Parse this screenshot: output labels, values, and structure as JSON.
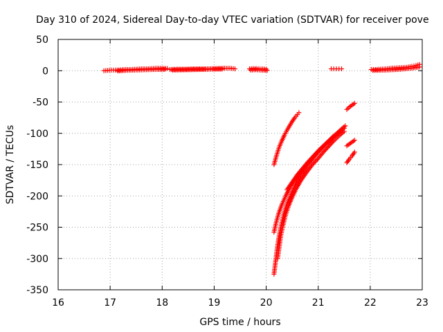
{
  "chart_data": {
    "type": "scatter",
    "title": "Day 310 of 2024, Sidereal Day-to-day VTEC variation (SDTVAR) for receiver pove",
    "xlabel": "GPS time / hours",
    "ylabel": "SDTVAR / TECUs",
    "xlim": [
      16,
      23
    ],
    "ylim": [
      -350,
      50
    ],
    "xticks": [
      16,
      17,
      18,
      19,
      20,
      21,
      22,
      23
    ],
    "yticks": [
      50,
      0,
      -50,
      -100,
      -150,
      -200,
      -250,
      -300,
      -350
    ],
    "grid": true,
    "marker": "plus",
    "color": "#ff0000",
    "series": [
      {
        "points": [
          [
            16.88,
            0
          ],
          [
            16.95,
            0.5
          ],
          [
            17.02,
            1
          ],
          [
            17.1,
            1
          ],
          [
            17.2,
            1.5
          ],
          [
            17.3,
            2
          ],
          [
            17.4,
            2
          ],
          [
            17.5,
            2.5
          ],
          [
            17.6,
            3
          ],
          [
            17.7,
            3
          ],
          [
            17.8,
            3.5
          ],
          [
            17.9,
            4
          ],
          [
            18.0,
            4
          ],
          [
            18.1,
            3.5
          ]
        ]
      },
      {
        "points": [
          [
            17.15,
            -0.5
          ],
          [
            17.3,
            0.5
          ],
          [
            17.5,
            1
          ],
          [
            17.7,
            1.5
          ],
          [
            17.9,
            2
          ],
          [
            18.05,
            2
          ]
        ]
      },
      {
        "points": [
          [
            18.15,
            2
          ],
          [
            18.3,
            2.5
          ],
          [
            18.45,
            2.5
          ],
          [
            18.6,
            3
          ],
          [
            18.75,
            3
          ],
          [
            18.9,
            3
          ],
          [
            19.05,
            3.5
          ],
          [
            19.2,
            4
          ],
          [
            19.3,
            4
          ],
          [
            19.4,
            3
          ]
        ]
      },
      {
        "points": [
          [
            18.2,
            1
          ],
          [
            18.5,
            1.5
          ],
          [
            18.8,
            2
          ],
          [
            19.0,
            2.5
          ],
          [
            19.15,
            2.5
          ]
        ]
      },
      {
        "points": [
          [
            19.68,
            3
          ],
          [
            19.75,
            3.5
          ],
          [
            19.82,
            3.5
          ],
          [
            19.9,
            3
          ],
          [
            20.0,
            2.5
          ]
        ]
      },
      {
        "points": [
          [
            19.7,
            1
          ],
          [
            19.8,
            1.5
          ],
          [
            19.9,
            1
          ],
          [
            20.02,
            0.5
          ]
        ]
      },
      {
        "points": [
          [
            21.25,
            3
          ],
          [
            21.3,
            3
          ],
          [
            21.35,
            3
          ],
          [
            21.4,
            3
          ],
          [
            21.45,
            3
          ]
        ]
      },
      {
        "points": [
          [
            22.02,
            2
          ],
          [
            22.1,
            2
          ],
          [
            22.2,
            2.5
          ],
          [
            22.3,
            3
          ],
          [
            22.4,
            4
          ],
          [
            22.5,
            4.5
          ],
          [
            22.6,
            5
          ],
          [
            22.7,
            5.5
          ],
          [
            22.8,
            7
          ],
          [
            22.88,
            8.5
          ],
          [
            22.95,
            10
          ]
        ]
      },
      {
        "points": [
          [
            22.05,
            0.5
          ],
          [
            22.3,
            1
          ],
          [
            22.55,
            2
          ],
          [
            22.8,
            4
          ],
          [
            22.95,
            6
          ]
        ]
      },
      {
        "points": [
          [
            20.15,
            -150
          ],
          [
            20.2,
            -135
          ],
          [
            20.25,
            -122
          ],
          [
            20.3,
            -112
          ],
          [
            20.35,
            -103
          ],
          [
            20.4,
            -95
          ],
          [
            20.45,
            -88
          ],
          [
            20.5,
            -81
          ],
          [
            20.55,
            -75
          ],
          [
            20.6,
            -70
          ],
          [
            20.63,
            -67
          ]
        ]
      },
      {
        "points": [
          [
            20.15,
            -325
          ],
          [
            20.18,
            -305
          ],
          [
            20.21,
            -285
          ],
          [
            20.24,
            -268
          ],
          [
            20.28,
            -250
          ],
          [
            20.33,
            -232
          ],
          [
            20.4,
            -213
          ],
          [
            20.5,
            -193
          ],
          [
            20.6,
            -176
          ],
          [
            20.7,
            -162
          ],
          [
            20.8,
            -150
          ],
          [
            20.9,
            -140
          ],
          [
            21.0,
            -130
          ],
          [
            21.1,
            -121
          ],
          [
            21.2,
            -113
          ],
          [
            21.3,
            -106
          ],
          [
            21.4,
            -99
          ],
          [
            21.5,
            -92
          ]
        ]
      },
      {
        "points": [
          [
            20.15,
            -258
          ],
          [
            20.19,
            -243
          ],
          [
            20.24,
            -228
          ],
          [
            20.3,
            -214
          ],
          [
            20.38,
            -199
          ],
          [
            20.46,
            -186
          ],
          [
            20.55,
            -174
          ],
          [
            20.65,
            -162
          ],
          [
            20.75,
            -152
          ],
          [
            20.85,
            -143
          ],
          [
            20.95,
            -134
          ],
          [
            21.05,
            -125
          ],
          [
            21.15,
            -117
          ],
          [
            21.25,
            -109
          ],
          [
            21.35,
            -101
          ],
          [
            21.45,
            -93
          ],
          [
            21.52,
            -88
          ]
        ]
      },
      {
        "points": [
          [
            20.22,
            -300
          ],
          [
            20.25,
            -282
          ],
          [
            20.28,
            -264
          ],
          [
            20.32,
            -248
          ],
          [
            20.37,
            -231
          ],
          [
            20.43,
            -216
          ],
          [
            20.5,
            -202
          ],
          [
            20.58,
            -188
          ],
          [
            20.67,
            -175
          ],
          [
            20.77,
            -163
          ],
          [
            20.88,
            -151
          ],
          [
            21.0,
            -140
          ],
          [
            21.1,
            -130
          ],
          [
            21.2,
            -121
          ],
          [
            21.3,
            -112
          ],
          [
            21.4,
            -104
          ],
          [
            21.5,
            -97
          ]
        ]
      },
      {
        "points": [
          [
            20.4,
            -190
          ],
          [
            20.5,
            -178
          ],
          [
            20.6,
            -166
          ],
          [
            20.7,
            -156
          ],
          [
            20.8,
            -146
          ],
          [
            20.9,
            -137
          ],
          [
            21.0,
            -128
          ],
          [
            21.1,
            -120
          ],
          [
            21.2,
            -112
          ],
          [
            21.3,
            -104
          ],
          [
            21.42,
            -96
          ]
        ]
      },
      {
        "points": [
          [
            21.55,
            -62
          ],
          [
            21.6,
            -58
          ],
          [
            21.65,
            -55
          ],
          [
            21.7,
            -52
          ]
        ]
      },
      {
        "points": [
          [
            21.55,
            -120
          ],
          [
            21.6,
            -117
          ],
          [
            21.65,
            -114
          ],
          [
            21.7,
            -111
          ]
        ]
      },
      {
        "points": [
          [
            21.55,
            -147
          ],
          [
            21.6,
            -141
          ],
          [
            21.65,
            -136
          ],
          [
            21.7,
            -130
          ]
        ]
      }
    ]
  }
}
